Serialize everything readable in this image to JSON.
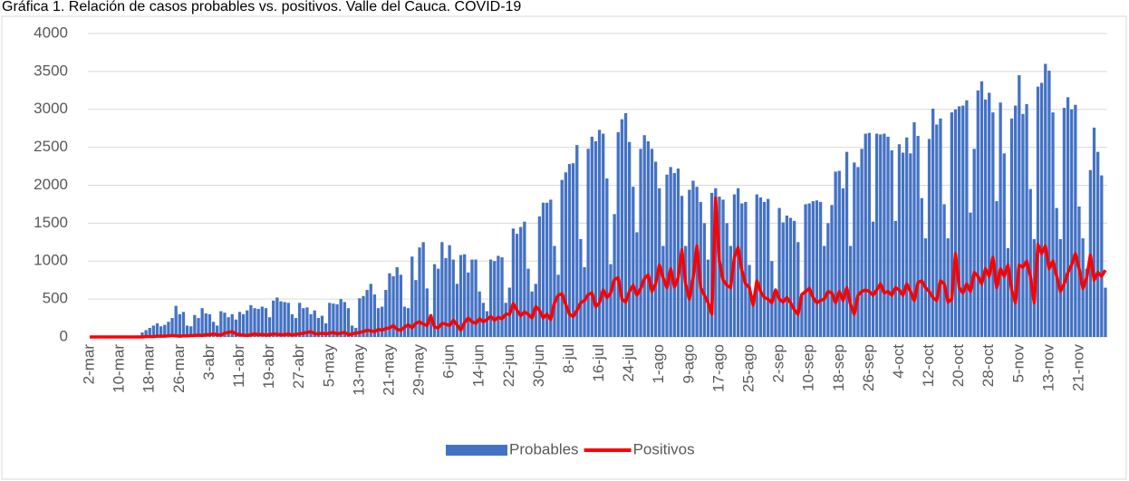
{
  "chart_data": {
    "type": "bar_line",
    "title": "Gráfica 1. Relación de casos probables vs. positivos. Valle del Cauca. COVID-19",
    "categories": [
      "2-mar",
      null,
      null,
      null,
      null,
      null,
      null,
      null,
      "10-mar",
      null,
      null,
      null,
      null,
      null,
      null,
      null,
      "18-mar",
      null,
      null,
      null,
      null,
      null,
      null,
      null,
      "26-mar",
      null,
      null,
      null,
      null,
      null,
      null,
      null,
      "3-abr",
      null,
      null,
      null,
      null,
      null,
      null,
      null,
      "11-abr",
      null,
      null,
      null,
      null,
      null,
      null,
      null,
      "19-abr",
      null,
      null,
      null,
      null,
      null,
      null,
      null,
      "27-abr",
      null,
      null,
      null,
      null,
      null,
      null,
      null,
      "5-may",
      null,
      null,
      null,
      null,
      null,
      null,
      null,
      "13-may",
      null,
      null,
      null,
      null,
      null,
      null,
      null,
      "21-may",
      null,
      null,
      null,
      null,
      null,
      null,
      null,
      "29-may",
      null,
      null,
      null,
      null,
      null,
      null,
      null,
      "6-jun",
      null,
      null,
      null,
      null,
      null,
      null,
      null,
      "14-jun",
      null,
      null,
      null,
      null,
      null,
      null,
      null,
      "22-jun",
      null,
      null,
      null,
      null,
      null,
      null,
      null,
      "30-jun",
      null,
      null,
      null,
      null,
      null,
      null,
      null,
      "8-jul",
      null,
      null,
      null,
      null,
      null,
      null,
      null,
      "16-jul",
      null,
      null,
      null,
      null,
      null,
      null,
      null,
      "24-jul",
      null,
      null,
      null,
      null,
      null,
      null,
      null,
      "1-ago",
      null,
      null,
      null,
      null,
      null,
      null,
      null,
      "9-ago",
      null,
      null,
      null,
      null,
      null,
      null,
      null,
      "17-ago",
      null,
      null,
      null,
      null,
      null,
      null,
      null,
      "25-ago",
      null,
      null,
      null,
      null,
      null,
      null,
      null,
      "2-sep",
      null,
      null,
      null,
      null,
      null,
      null,
      null,
      "10-sep",
      null,
      null,
      null,
      null,
      null,
      null,
      null,
      "18-sep",
      null,
      null,
      null,
      null,
      null,
      null,
      null,
      "26-sep",
      null,
      null,
      null,
      null,
      null,
      null,
      null,
      "4-oct",
      null,
      null,
      null,
      null,
      null,
      null,
      null,
      "12-oct",
      null,
      null,
      null,
      null,
      null,
      null,
      null,
      "20-oct",
      null,
      null,
      null,
      null,
      null,
      null,
      null,
      "28-oct",
      null,
      null,
      null,
      null,
      null,
      null,
      null,
      "5-nov",
      null,
      null,
      null,
      null,
      null,
      null,
      null,
      "13-nov",
      null,
      null,
      null,
      null,
      null,
      null,
      null,
      "21-nov",
      null,
      null,
      null,
      null,
      null,
      null,
      null
    ],
    "series": [
      {
        "name": "Probables",
        "kind": "bar",
        "color": "#4472c4",
        "values": [
          0,
          0,
          0,
          0,
          0,
          0,
          0,
          0,
          0,
          0,
          0,
          5,
          10,
          20,
          60,
          90,
          120,
          150,
          180,
          140,
          160,
          200,
          250,
          410,
          300,
          330,
          150,
          140,
          290,
          250,
          380,
          310,
          300,
          200,
          150,
          340,
          320,
          260,
          300,
          230,
          330,
          300,
          350,
          420,
          380,
          370,
          400,
          380,
          260,
          480,
          520,
          470,
          460,
          450,
          300,
          250,
          450,
          380,
          390,
          300,
          350,
          250,
          280,
          180,
          450,
          440,
          430,
          500,
          460,
          380,
          150,
          120,
          510,
          540,
          620,
          700,
          560,
          380,
          400,
          620,
          840,
          800,
          920,
          820,
          400,
          380,
          1060,
          750,
          1180,
          1250,
          640,
          300,
          960,
          900,
          1250,
          1040,
          1210,
          1020,
          700,
          1080,
          1090,
          850,
          1020,
          1020,
          600,
          450,
          340,
          1020,
          1000,
          1070,
          1050,
          450,
          650,
          1430,
          1360,
          1450,
          1520,
          900,
          600,
          700,
          1590,
          1770,
          1770,
          1810,
          1200,
          820,
          2070,
          2170,
          2280,
          2290,
          2530,
          1290,
          920,
          2480,
          2640,
          2580,
          2730,
          2680,
          2090,
          960,
          1620,
          2700,
          2870,
          2950,
          2570,
          1980,
          1380,
          2480,
          2660,
          2580,
          2480,
          2310,
          1960,
          1200,
          2140,
          2240,
          2160,
          2220,
          1860,
          1200,
          1940,
          2060,
          1980,
          1780,
          1500,
          1020,
          1900,
          1960,
          1850,
          1810,
          1500,
          1200,
          1880,
          1960,
          1760,
          1780,
          950,
          520,
          1880,
          1840,
          1780,
          1820,
          1000,
          550,
          1700,
          1510,
          1600,
          1570,
          1530,
          1250,
          540,
          1750,
          1760,
          1790,
          1800,
          1780,
          1200,
          1500,
          1740,
          2180,
          2190,
          1960,
          2440,
          1200,
          2300,
          2240,
          2480,
          2680,
          2690,
          1520,
          2680,
          2670,
          2680,
          2640,
          2460,
          1530,
          2540,
          2430,
          2630,
          2420,
          2830,
          2650,
          1830,
          1300,
          2610,
          3010,
          2800,
          2880,
          1750,
          1300,
          2960,
          3000,
          3040,
          3050,
          3120,
          1640,
          2480,
          3250,
          3370,
          3130,
          3220,
          2960,
          1790,
          3090,
          2420,
          1170,
          2880,
          3050,
          3450,
          2940,
          3070,
          1950,
          1290,
          3300,
          3350,
          3600,
          3510,
          2960,
          1700,
          1290,
          3020,
          3160,
          3000,
          3060,
          1720,
          1300,
          900,
          2200,
          2760,
          2440,
          2130,
          650
        ]
      },
      {
        "name": "Positivos",
        "kind": "line",
        "color": "#ff0000",
        "values": [
          0,
          0,
          0,
          0,
          0,
          0,
          0,
          0,
          0,
          0,
          0,
          0,
          0,
          0,
          0,
          5,
          5,
          5,
          10,
          10,
          10,
          15,
          20,
          15,
          10,
          15,
          15,
          20,
          20,
          25,
          20,
          30,
          30,
          40,
          30,
          25,
          50,
          60,
          70,
          40,
          30,
          25,
          20,
          30,
          40,
          30,
          35,
          25,
          30,
          40,
          35,
          30,
          30,
          40,
          25,
          35,
          40,
          50,
          60,
          70,
          45,
          40,
          50,
          40,
          50,
          60,
          40,
          50,
          60,
          30,
          40,
          50,
          60,
          70,
          90,
          80,
          70,
          100,
          90,
          110,
          120,
          150,
          100,
          90,
          130,
          160,
          120,
          180,
          200,
          170,
          150,
          280,
          130,
          120,
          180,
          170,
          150,
          220,
          160,
          90,
          190,
          250,
          200,
          180,
          240,
          200,
          230,
          270,
          220,
          260,
          240,
          300,
          300,
          440,
          350,
          280,
          330,
          300,
          250,
          400,
          350,
          250,
          300,
          230,
          450,
          550,
          570,
          430,
          300,
          270,
          350,
          450,
          480,
          560,
          580,
          400,
          450,
          620,
          520,
          580,
          760,
          780,
          500,
          460,
          600,
          680,
          550,
          640,
          770,
          820,
          600,
          700,
          950,
          780,
          650,
          900,
          660,
          780,
          1150,
          700,
          500,
          780,
          1200,
          650,
          550,
          450,
          300,
          1830,
          1000,
          750,
          680,
          650,
          1050,
          1180,
          880,
          700,
          650,
          420,
          740,
          600,
          520,
          500,
          450,
          620,
          500,
          460,
          520,
          450,
          360,
          300,
          560,
          600,
          640,
          520,
          450,
          480,
          500,
          600,
          580,
          450,
          600,
          480,
          650,
          430,
          300,
          550,
          600,
          620,
          600,
          550,
          620,
          700,
          580,
          600,
          550,
          650,
          620,
          550,
          700,
          600,
          480,
          720,
          740,
          650,
          600,
          520,
          480,
          740,
          700,
          460,
          500,
          1100,
          650,
          580,
          700,
          600,
          850,
          800,
          700,
          900,
          800,
          1050,
          650,
          900,
          800,
          950,
          620,
          450,
          950,
          920,
          1000,
          800,
          450,
          1220,
          1100,
          1200,
          900,
          1000,
          800,
          600,
          700,
          850,
          950,
          1100,
          900,
          640,
          780,
          1080,
          750,
          850,
          800,
          880
        ]
      }
    ],
    "ylim": [
      0,
      4000
    ],
    "yticks": [
      0,
      500,
      1000,
      1500,
      2000,
      2500,
      3000,
      3500,
      4000
    ],
    "grid": true,
    "legend": "bottom"
  }
}
